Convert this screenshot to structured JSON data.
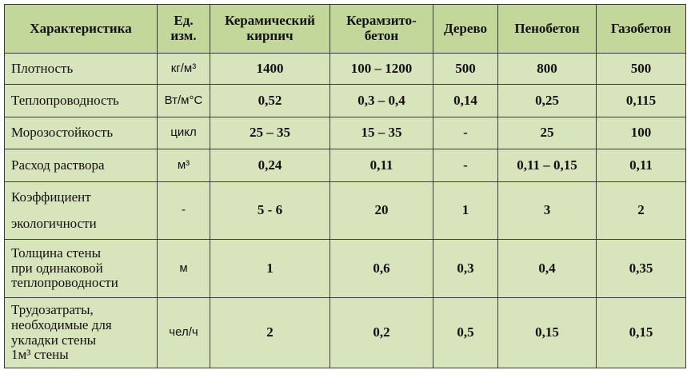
{
  "table": {
    "header": [
      "Характеристика",
      "Ед.\nизм.",
      "Керамический\nкирпич",
      "Керамзито-\nбетон",
      "Дерево",
      "Пенобетон",
      "Газобетон"
    ],
    "rows": [
      [
        "Плотность",
        "кг/м³",
        "1400",
        "100 – 1200",
        "500",
        "800",
        "500"
      ],
      [
        "Теплопроводность",
        "Вт/м°С",
        "0,52",
        "0,3 – 0,4",
        "0,14",
        "0,25",
        "0,115"
      ],
      [
        "Морозостойкость",
        "цикл",
        "25 – 35",
        "15 – 35",
        "-",
        "25",
        "100"
      ],
      [
        "Расход раствора",
        "м³",
        "0,24",
        "0,11",
        "-",
        "0,11 – 0,15",
        "0,11"
      ],
      [
        "Коэффициент\nэкологичности",
        "-",
        "5 - 6",
        "20",
        "1",
        "3",
        "2"
      ],
      [
        "Толщина стены\nпри одинаковой\nтеплопроводности",
        "м",
        "1",
        "0,6",
        "0,3",
        "0,4",
        "0,35"
      ],
      [
        "Трудозатраты,\nнеобходимые для\nукладки стены\n1м³ стены",
        "чел/ч",
        "2",
        "0,2",
        "0,5",
        "0,15",
        "0,15"
      ]
    ]
  }
}
